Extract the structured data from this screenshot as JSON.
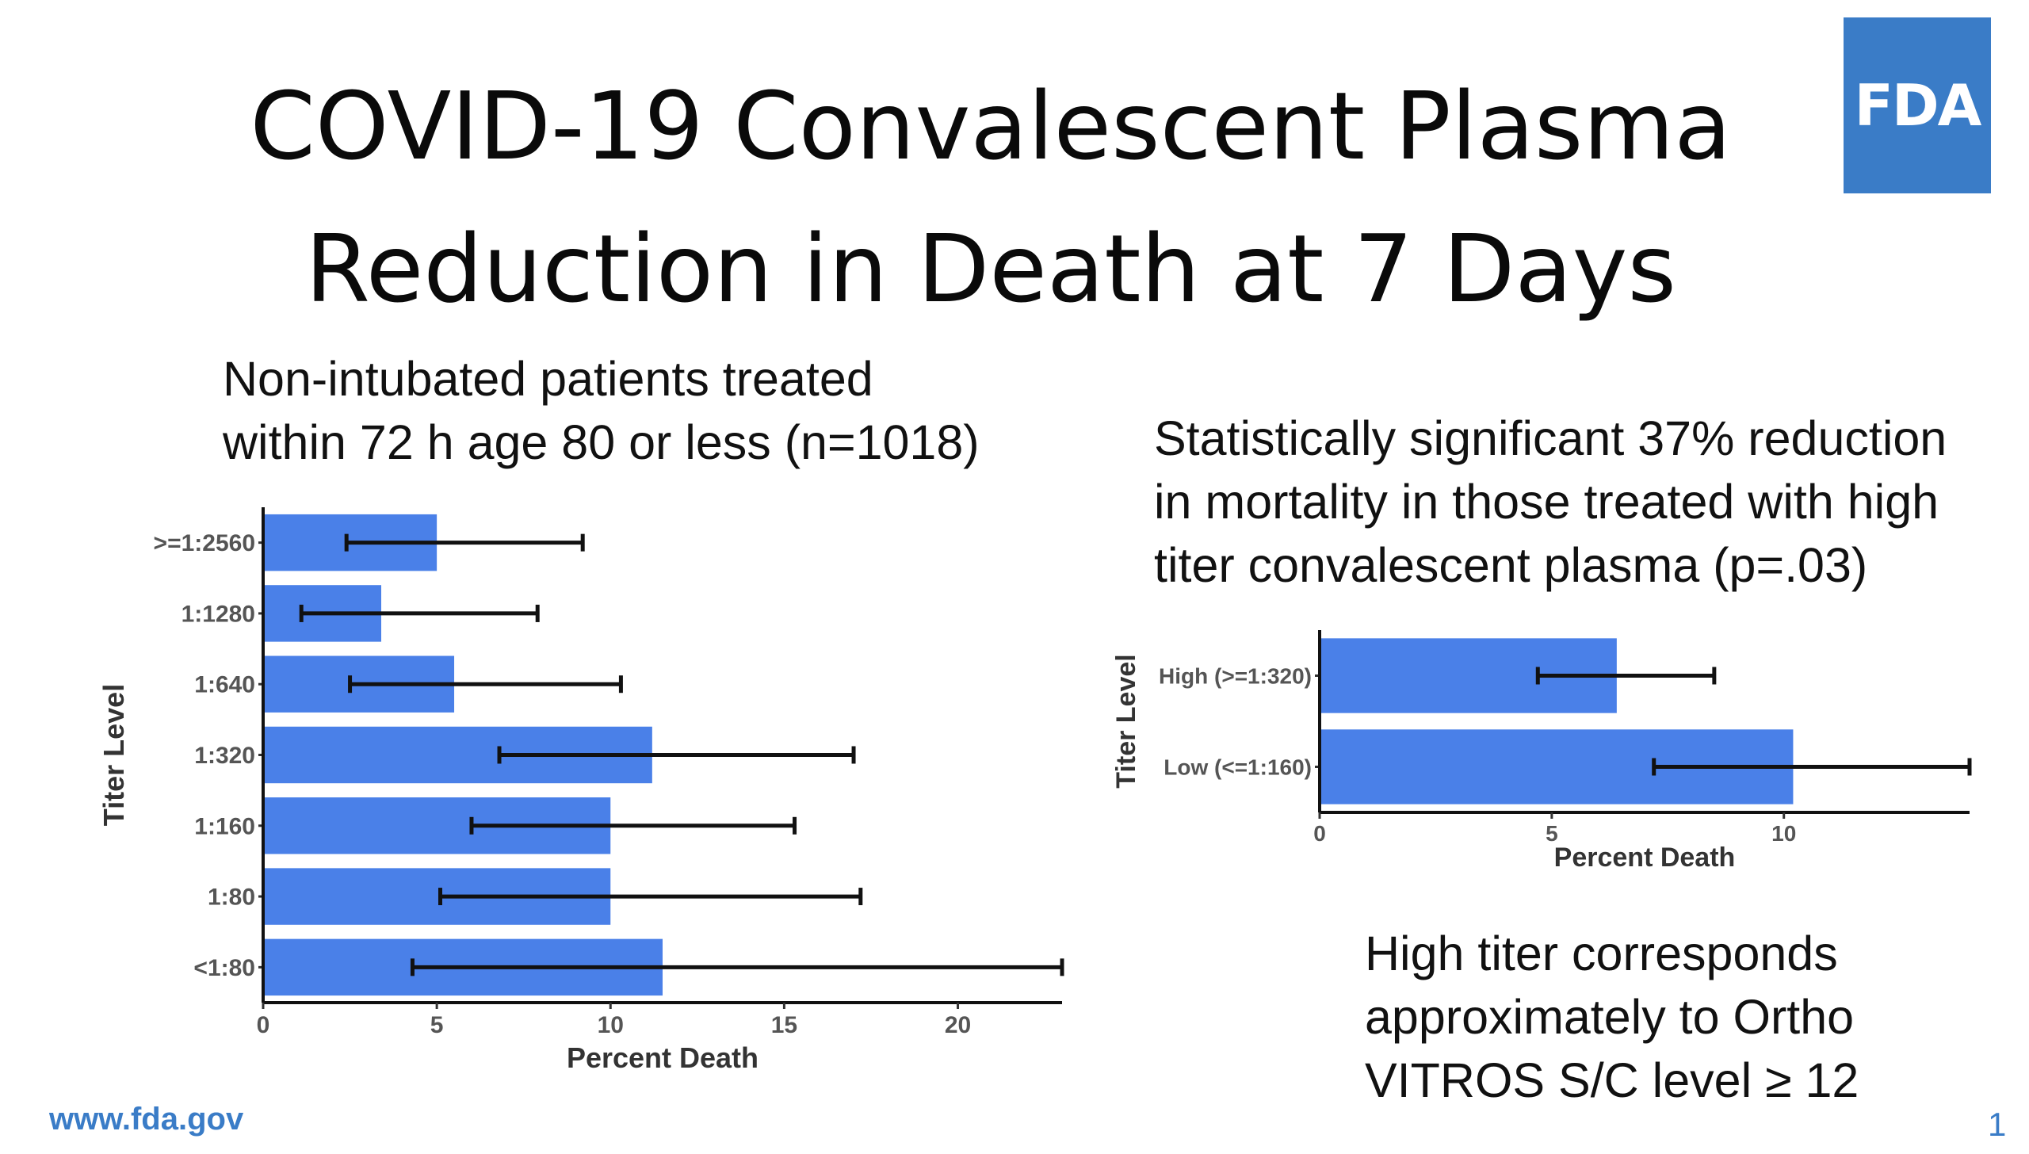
{
  "slide": {
    "title_lines": [
      "COVID-19 Convalescent Plasma",
      "Reduction in Death at 7 Days"
    ],
    "logo_text": "FDA",
    "left_subtitle_lines": [
      "Non-intubated patients treated",
      "within 72 h age 80 or less (n=1018)"
    ],
    "right_text_lines": [
      "Statistically significant 37% reduction",
      "in mortality in those treated with high",
      "titer convalescent plasma (p=.03)"
    ],
    "note_lines": [
      "High titer corresponds",
      "approximately to Ortho",
      "VITROS S/C level ≥ 12"
    ],
    "footer_url": "www.fda.gov",
    "slide_number": "1",
    "colors": {
      "bar": "#4a80e8",
      "logo_bg": "#3a7cc7",
      "footer": "#3a7cc7",
      "error_bar": "#111111"
    }
  },
  "chart_data": [
    {
      "type": "bar",
      "orientation": "horizontal",
      "categories": [
        ">=1:2560",
        "1:1280",
        "1:640",
        "1:320",
        "1:160",
        "1:80",
        "<1:80"
      ],
      "values": [
        5.0,
        3.4,
        5.5,
        11.2,
        10.0,
        10.0,
        11.5
      ],
      "error_low": [
        2.4,
        1.1,
        2.5,
        6.8,
        6.0,
        5.1,
        4.3
      ],
      "error_high": [
        9.2,
        7.9,
        10.3,
        17.0,
        15.3,
        17.2,
        23.0
      ],
      "xlabel": "Percent Death",
      "ylabel": "Titer Level",
      "xticks": [
        0,
        5,
        10,
        15,
        20
      ],
      "xlim": [
        0,
        23
      ],
      "grid": false
    },
    {
      "type": "bar",
      "orientation": "horizontal",
      "categories": [
        "High (>=1:320)",
        "Low (<=1:160)"
      ],
      "values": [
        6.4,
        10.2
      ],
      "error_low": [
        4.7,
        7.2
      ],
      "error_high": [
        8.5,
        14.0
      ],
      "xlabel": "Percent Death",
      "ylabel": "Titer Level",
      "xticks": [
        0,
        5,
        10
      ],
      "xlim": [
        0,
        14
      ],
      "grid": false
    }
  ]
}
